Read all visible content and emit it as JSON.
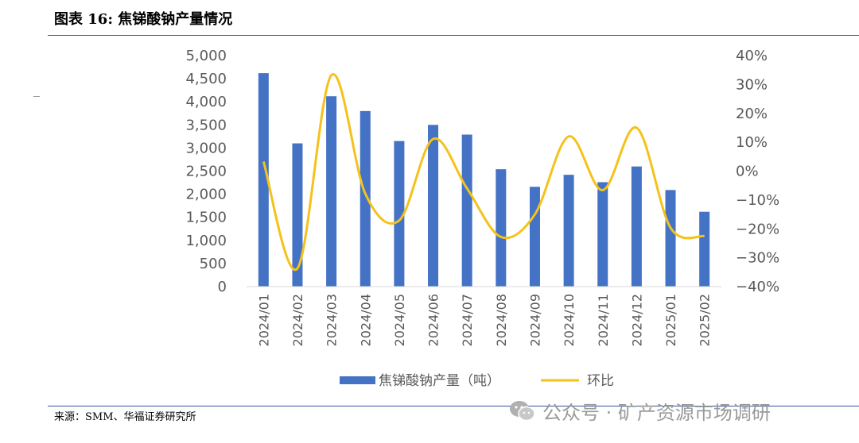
{
  "header": {
    "title": "图表 16:  焦锑酸钠产量情况"
  },
  "footer": {
    "source": "来源：SMM、华福证券研究所",
    "watermark": "公众号 · 矿产资源市场调研"
  },
  "colors": {
    "bar": "#4472c4",
    "line": "#f4c21b",
    "rule": "#2e5597"
  },
  "chart_data": {
    "type": "bar",
    "categories": [
      "2024/01",
      "2024/02",
      "2024/03",
      "2024/04",
      "2024/05",
      "2024/06",
      "2024/07",
      "2024/08",
      "2024/09",
      "2024/10",
      "2024/11",
      "2024/12",
      "2025/01",
      "2025/02"
    ],
    "series": [
      {
        "name": "焦锑酸钠产量（吨）",
        "type": "bar",
        "axis": "left",
        "values": [
          4620,
          3100,
          4120,
          3800,
          3150,
          3500,
          3290,
          2540,
          2160,
          2420,
          2260,
          2600,
          2090,
          1620
        ]
      },
      {
        "name": "环比",
        "type": "line",
        "axis": "right",
        "unit": "%",
        "values": [
          3.3,
          -33.7,
          33.2,
          -7.8,
          -17.1,
          11.1,
          -6.0,
          -22.8,
          -15.0,
          12.0,
          -6.6,
          15.0,
          -19.6,
          -22.5
        ]
      }
    ],
    "y_left": {
      "min": 0,
      "max": 5000,
      "step": 500,
      "ticks": [
        "0",
        "500",
        "1,000",
        "1,500",
        "2,000",
        "2,500",
        "3,000",
        "3,500",
        "4,000",
        "4,500",
        "5,000"
      ]
    },
    "y_right": {
      "min": -40,
      "max": 40,
      "step": 10,
      "ticks": [
        "-40%",
        "-30%",
        "-20%",
        "-10%",
        "0%",
        "10%",
        "20%",
        "30%",
        "40%"
      ]
    },
    "legend": {
      "placement": "bottom",
      "entries": [
        "焦锑酸钠产量（吨）",
        "环比"
      ]
    },
    "grid": false
  }
}
